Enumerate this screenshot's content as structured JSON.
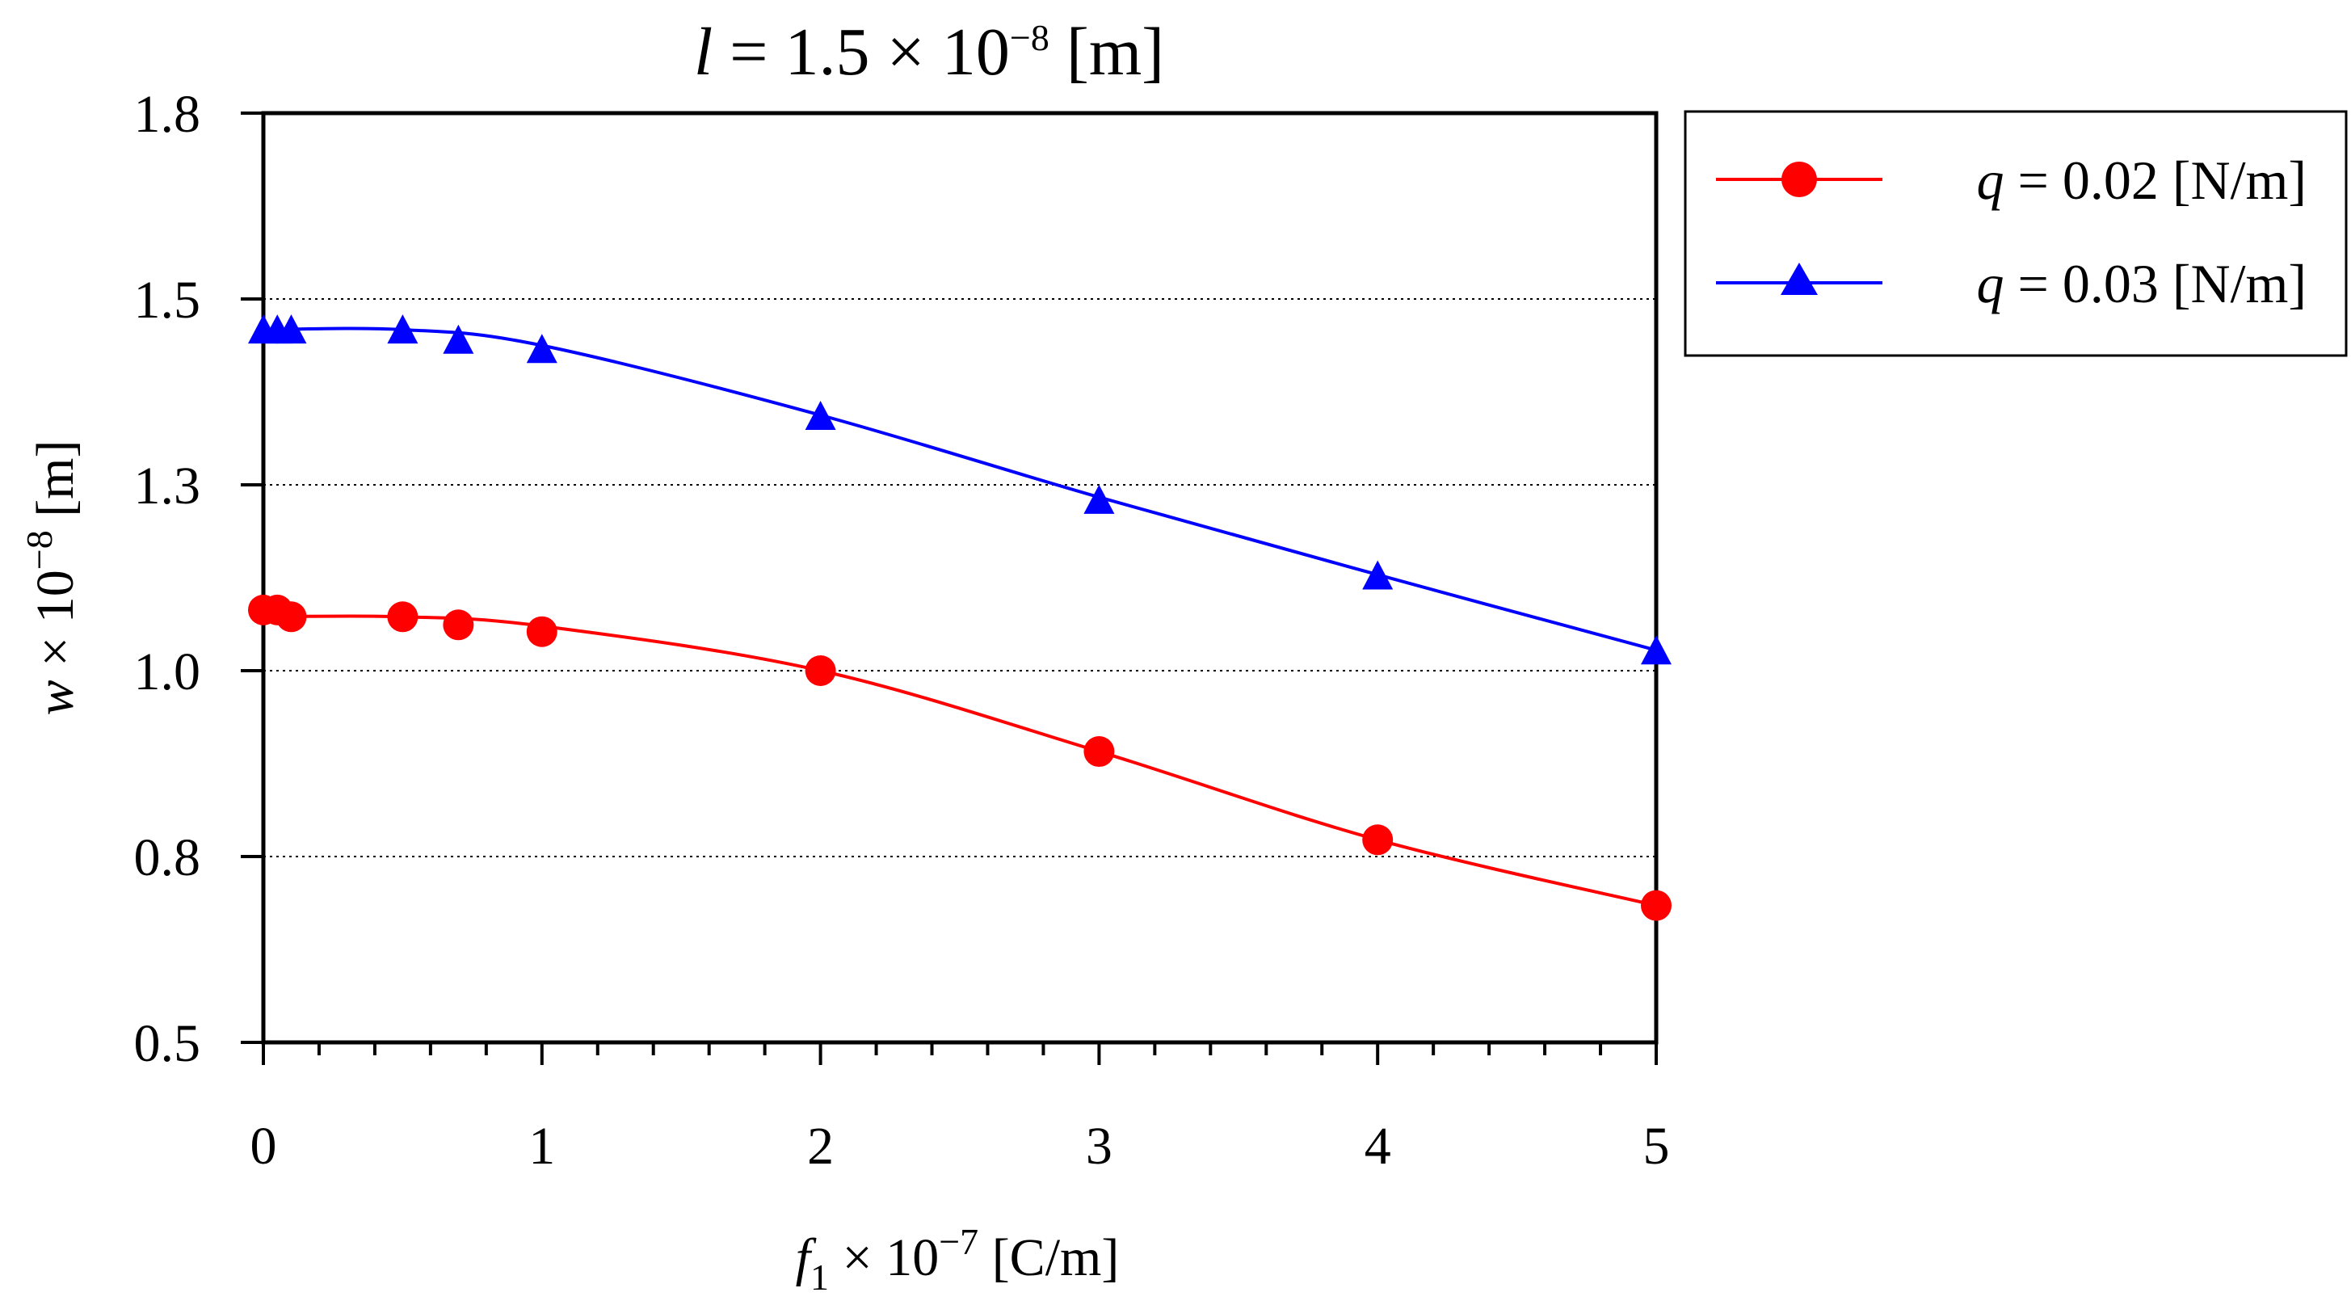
{
  "chart_data": {
    "type": "line",
    "title": {
      "var": "l",
      "text": " = 1.5 × 10",
      "exp": "−8",
      "unit": " [m]"
    },
    "xlabel": {
      "var": "f",
      "sub": "1",
      "mid": " × 10",
      "exp": "−7",
      "unit": " [C/m]"
    },
    "ylabel": {
      "var": "w",
      "mid": " × 10",
      "exp": "−8",
      "unit": " [m]"
    },
    "xlim": [
      0,
      5
    ],
    "ylim": [
      0.5,
      1.8
    ],
    "x_ticks": [
      0,
      1,
      2,
      3,
      4,
      5
    ],
    "x_tick_labels": [
      "0",
      "1",
      "2",
      "3",
      "4",
      "5"
    ],
    "x_minor_step": 0.2,
    "y_ticks": [
      0.5,
      0.8,
      1.0,
      1.3,
      1.5,
      1.8
    ],
    "y_tick_labels": [
      "0.5",
      "0.8",
      "1.0",
      "1.3",
      "1.5",
      "1.8"
    ],
    "grid_y": [
      0.8,
      1.0,
      1.3,
      1.5
    ],
    "legend_position": "outside-right-top",
    "series": [
      {
        "name_var": "q",
        "name_text": " = 0.02 [N/m]",
        "color": "#ff0000",
        "marker": "circle",
        "x": [
          0,
          0.05,
          0.1,
          0.5,
          0.7,
          1,
          2,
          3,
          4,
          5
        ],
        "y": [
          1.098,
          1.098,
          1.087,
          1.087,
          1.074,
          1.063,
          1.0,
          0.913,
          0.818,
          0.721
        ],
        "curve": [
          [
            0,
            1.087
          ],
          [
            0.5,
            1.087
          ],
          [
            1,
            1.072
          ],
          [
            2,
            1.0
          ],
          [
            3,
            0.913
          ],
          [
            4,
            0.818
          ],
          [
            5,
            0.721
          ]
        ]
      },
      {
        "name_var": "q",
        "name_text": " = 0.03 [N/m]",
        "color": "#0000ff",
        "marker": "triangle",
        "x": [
          0,
          0.05,
          0.1,
          0.5,
          0.7,
          1,
          2,
          3,
          4,
          5
        ],
        "y": [
          1.466,
          1.466,
          1.466,
          1.466,
          1.455,
          1.445,
          1.373,
          1.274,
          1.152,
          1.031
        ],
        "curve": [
          [
            0,
            1.467
          ],
          [
            0.5,
            1.467
          ],
          [
            1,
            1.45
          ],
          [
            2,
            1.375
          ],
          [
            3,
            1.28
          ],
          [
            4,
            1.155
          ],
          [
            5,
            1.033
          ]
        ]
      }
    ]
  }
}
